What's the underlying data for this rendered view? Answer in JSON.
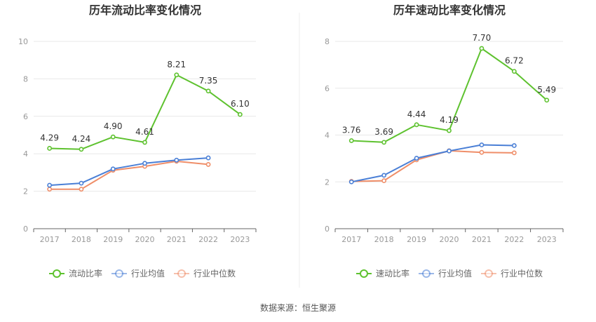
{
  "source": "数据来源：恒生聚源",
  "chart_data": [
    {
      "type": "line",
      "title": "历年流动比率变化情况",
      "categories": [
        "2017",
        "2018",
        "2019",
        "2020",
        "2021",
        "2022",
        "2023"
      ],
      "ylim": [
        0,
        10
      ],
      "yticks": [
        "0",
        "2",
        "4",
        "6",
        "8",
        "10"
      ],
      "grid": true,
      "legend_position": "bottom",
      "series": [
        {
          "name": "流动比率",
          "color": "#5ec22f",
          "values": [
            4.29,
            4.24,
            4.9,
            4.61,
            8.21,
            7.35,
            6.1
          ],
          "labels": [
            "4.29",
            "4.24",
            "4.90",
            "4.61",
            "8.21",
            "7.35",
            "6.10"
          ]
        },
        {
          "name": "行业均值",
          "color": "#4a7fd6",
          "values": [
            2.32,
            2.43,
            3.19,
            3.49,
            3.66,
            3.78,
            null
          ],
          "labels": []
        },
        {
          "name": "行业中位数",
          "color": "#ef8e69",
          "values": [
            2.11,
            2.11,
            3.12,
            3.33,
            3.6,
            3.43,
            null
          ],
          "labels": []
        }
      ]
    },
    {
      "type": "line",
      "title": "历年速动比率变化情况",
      "categories": [
        "2017",
        "2018",
        "2019",
        "2020",
        "2021",
        "2022",
        "2023"
      ],
      "ylim": [
        0,
        8
      ],
      "yticks": [
        "0",
        "2",
        "4",
        "6",
        "8"
      ],
      "grid": true,
      "legend_position": "bottom",
      "series": [
        {
          "name": "速动比率",
          "color": "#5ec22f",
          "values": [
            3.76,
            3.69,
            4.44,
            4.19,
            7.7,
            6.72,
            5.49
          ],
          "labels": [
            "3.76",
            "3.69",
            "4.44",
            "4.19",
            "7.70",
            "6.72",
            "5.49"
          ]
        },
        {
          "name": "行业均值",
          "color": "#4a7fd6",
          "values": [
            2.0,
            2.28,
            3.01,
            3.32,
            3.58,
            3.55,
            null
          ],
          "labels": []
        },
        {
          "name": "行业中位数",
          "color": "#ef8e69",
          "values": [
            2.02,
            2.05,
            2.94,
            3.33,
            3.26,
            3.24,
            null
          ],
          "labels": []
        }
      ]
    }
  ]
}
